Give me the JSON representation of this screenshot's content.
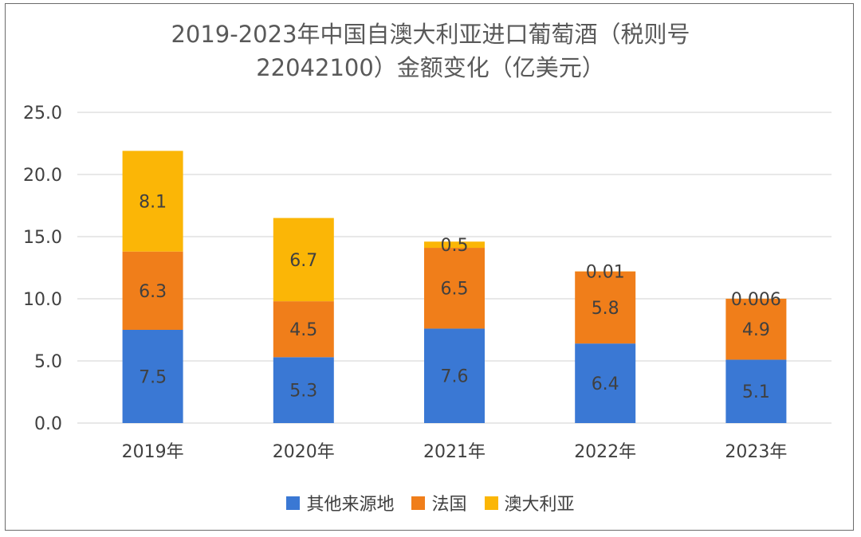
{
  "colors": {
    "other": "#3a78d4",
    "france": "#f07e1a",
    "australia": "#fbb606",
    "grid": "#d9d9d9",
    "axis_text": "#404040",
    "label_text": "#404040"
  },
  "chart_data": {
    "type": "bar",
    "stacked": true,
    "title_line1": "2019-2023年中国自澳大利亚进口葡萄酒（税则号",
    "title_line2": "22042100）金额变化（亿美元）",
    "categories": [
      "2019年",
      "2020年",
      "2021年",
      "2022年",
      "2023年"
    ],
    "series": [
      {
        "name": "其他来源地",
        "color_key": "other",
        "values": [
          7.5,
          5.3,
          7.6,
          6.4,
          5.1
        ],
        "labels": [
          "7.5",
          "5.3",
          "7.6",
          "6.4",
          "5.1"
        ]
      },
      {
        "name": "法国",
        "color_key": "france",
        "values": [
          6.3,
          4.5,
          6.5,
          5.8,
          4.9
        ],
        "labels": [
          "6.3",
          "4.5",
          "6.5",
          "5.8",
          "4.9"
        ]
      },
      {
        "name": "澳大利亚",
        "color_key": "australia",
        "values": [
          8.1,
          6.7,
          0.5,
          0.01,
          0.006
        ],
        "labels": [
          "8.1",
          "6.7",
          "0.5",
          "0.01",
          "0.006"
        ]
      }
    ],
    "ylim": [
      0,
      25
    ],
    "yticks": [
      "0.0",
      "5.0",
      "10.0",
      "15.0",
      "20.0",
      "25.0"
    ],
    "ytick_values": [
      0,
      5,
      10,
      15,
      20,
      25
    ],
    "grid": true,
    "legend_position": "bottom"
  }
}
